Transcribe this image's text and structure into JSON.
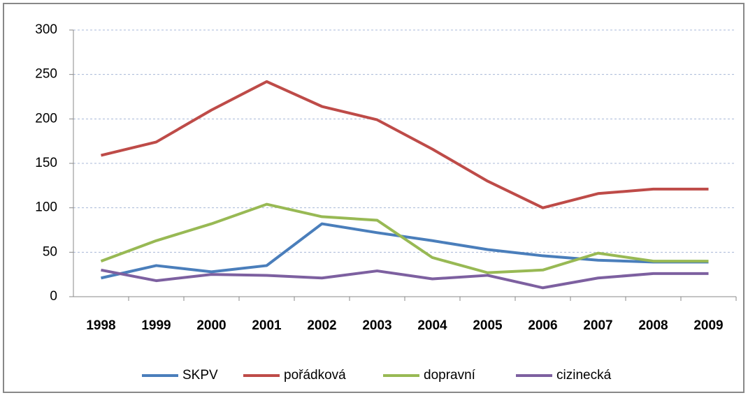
{
  "chart_data": {
    "type": "line",
    "categories": [
      "1998",
      "1999",
      "2000",
      "2001",
      "2002",
      "2003",
      "2004",
      "2005",
      "2006",
      "2007",
      "2008",
      "2009"
    ],
    "series": [
      {
        "name": "SKPV",
        "color": "#4a7ebb",
        "values": [
          21,
          35,
          28,
          35,
          82,
          72,
          63,
          53,
          46,
          41,
          39,
          39
        ]
      },
      {
        "name": "pořádková",
        "color": "#be4b48",
        "values": [
          159,
          174,
          210,
          242,
          214,
          199,
          166,
          130,
          100,
          116,
          121,
          121
        ]
      },
      {
        "name": "dopravní",
        "color": "#98b954",
        "values": [
          40,
          63,
          82,
          104,
          90,
          86,
          44,
          27,
          30,
          49,
          40,
          40
        ]
      },
      {
        "name": "cizinecká",
        "color": "#7d60a0",
        "values": [
          30,
          18,
          25,
          24,
          21,
          29,
          20,
          24,
          10,
          21,
          26,
          26
        ]
      }
    ],
    "ylim": [
      0,
      300
    ],
    "yticks": [
      0,
      50,
      100,
      150,
      200,
      250,
      300
    ],
    "grid": true,
    "legend": "bottom"
  }
}
